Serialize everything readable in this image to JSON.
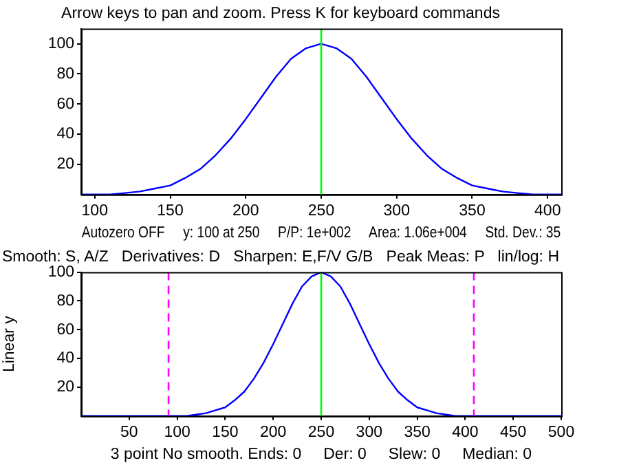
{
  "chart_data": [
    {
      "type": "line",
      "title": "Arrow keys to pan and zoom. Press K for keyboard commands",
      "xlabel": "Autozero OFF     y: 100 at 250     P/P: 1e+002     Area: 1.06e+004     Std. Dev.: 35",
      "x": [
        91,
        100,
        110,
        120,
        130,
        140,
        150,
        160,
        170,
        180,
        190,
        200,
        210,
        220,
        230,
        240,
        250,
        260,
        270,
        280,
        290,
        300,
        310,
        320,
        330,
        340,
        350,
        360,
        370,
        380,
        390,
        400,
        409
      ],
      "series": [
        {
          "color": "#0000ff",
          "values": [
            0,
            0,
            0,
            1,
            2,
            4,
            6,
            11,
            17,
            26,
            37,
            50,
            64,
            78,
            90,
            97,
            100,
            97,
            90,
            78,
            64,
            50,
            37,
            26,
            17,
            11,
            6,
            4,
            2,
            1,
            0,
            0,
            0
          ]
        }
      ],
      "xlim": [
        91,
        409
      ],
      "xticks": [
        100,
        150,
        200,
        250,
        300,
        350,
        400
      ],
      "ylim": [
        0,
        110
      ],
      "yticks": [
        20,
        40,
        60,
        80,
        100
      ],
      "grid": false,
      "legend": false,
      "ref_lines": [
        {
          "axis": "x",
          "value": 250,
          "color": "#00ff00",
          "line_style": "solid"
        }
      ]
    },
    {
      "type": "line",
      "title": "Smooth: S, A/Z   Derivatives: D   Sharpen: E,F/V G/B   Peak Meas: P   lin/log: H",
      "xlabel": "3 point No smooth. Ends: 0     Der: 0     Slew: 0     Median: 0",
      "ylabel": "Linear y",
      "x": [
        0,
        10,
        20,
        30,
        40,
        50,
        60,
        70,
        80,
        90,
        100,
        110,
        120,
        130,
        140,
        150,
        160,
        170,
        180,
        190,
        200,
        210,
        220,
        230,
        240,
        250,
        260,
        270,
        280,
        290,
        300,
        310,
        320,
        330,
        340,
        350,
        360,
        370,
        380,
        390,
        400,
        410,
        420,
        430,
        440,
        450,
        460,
        470,
        480,
        490,
        500
      ],
      "series": [
        {
          "color": "#0000ff",
          "values": [
            0,
            0,
            0,
            0,
            0,
            0,
            0,
            0,
            0,
            0,
            0,
            0,
            1,
            2,
            4,
            6,
            11,
            17,
            26,
            37,
            50,
            64,
            78,
            90,
            97,
            100,
            97,
            90,
            78,
            64,
            50,
            37,
            26,
            17,
            11,
            6,
            4,
            2,
            1,
            0,
            0,
            0,
            0,
            0,
            0,
            0,
            0,
            0,
            0,
            0,
            0
          ]
        }
      ],
      "xlim": [
        0,
        500
      ],
      "xticks": [
        50,
        100,
        150,
        200,
        250,
        300,
        350,
        400,
        450,
        500
      ],
      "ylim": [
        0,
        100
      ],
      "yticks": [
        20,
        40,
        60,
        80,
        100
      ],
      "grid": false,
      "legend": false,
      "ref_lines": [
        {
          "axis": "x",
          "value": 250,
          "color": "#00ff00",
          "line_style": "solid"
        },
        {
          "axis": "x",
          "value": 91,
          "color": "#ff00ff",
          "line_style": "dashed"
        },
        {
          "axis": "x",
          "value": 409,
          "color": "#ff00ff",
          "line_style": "dashed"
        }
      ]
    }
  ]
}
